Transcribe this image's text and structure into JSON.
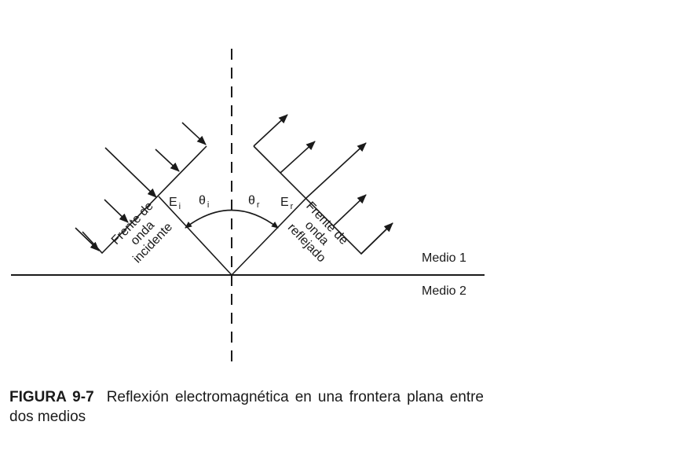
{
  "diagram": {
    "media": {
      "upper": "Medio 1",
      "lower": "Medio 2"
    },
    "incident_field": {
      "symbol": "E",
      "subscript": "i"
    },
    "reflected_field": {
      "symbol": "E",
      "subscript": "r"
    },
    "incident_angle": {
      "symbol": "θ",
      "subscript": "i"
    },
    "reflected_angle": {
      "symbol": "θ",
      "subscript": "r"
    },
    "incident_front_label": [
      "Frente de",
      "onda",
      "incidente"
    ],
    "reflected_front_label": [
      "Frente de",
      "onda",
      "reflejado"
    ]
  },
  "caption": {
    "label": "FIGURA 9-7",
    "text": "Reflexión electromagnética en una frontera plana entre dos medios"
  }
}
